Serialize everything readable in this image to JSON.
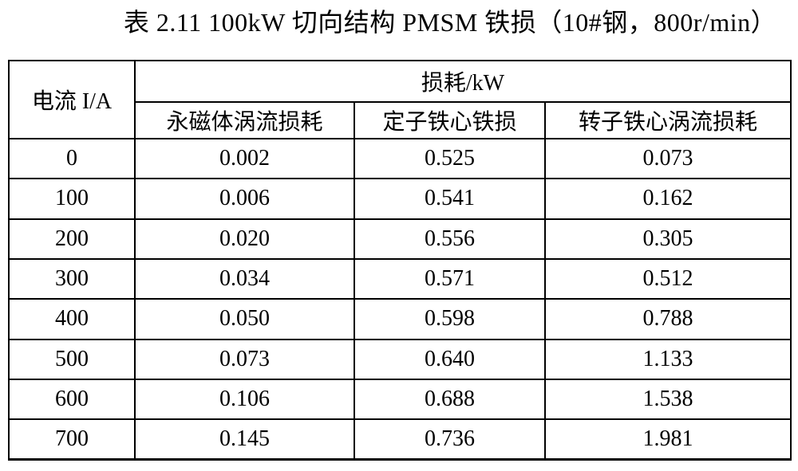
{
  "caption": "表 2.11 100kW 切向结构 PMSM 铁损（10#钢，800r/min）",
  "table": {
    "header": {
      "current": "电流 I/A",
      "loss_group": "损耗/kW",
      "sub_columns": [
        "永磁体涡流损耗",
        "定子铁心铁损",
        "转子铁心涡流损耗"
      ]
    },
    "rows": [
      [
        "0",
        "0.002",
        "0.525",
        "0.073"
      ],
      [
        "100",
        "0.006",
        "0.541",
        "0.162"
      ],
      [
        "200",
        "0.020",
        "0.556",
        "0.305"
      ],
      [
        "300",
        "0.034",
        "0.571",
        "0.512"
      ],
      [
        "400",
        "0.050",
        "0.598",
        "0.788"
      ],
      [
        "500",
        "0.073",
        "0.640",
        "1.133"
      ],
      [
        "600",
        "0.106",
        "0.688",
        "1.538"
      ],
      [
        "700",
        "0.145",
        "0.736",
        "1.981"
      ]
    ]
  },
  "colors": {
    "text": "#000000",
    "border": "#000000",
    "background": "#ffffff"
  }
}
